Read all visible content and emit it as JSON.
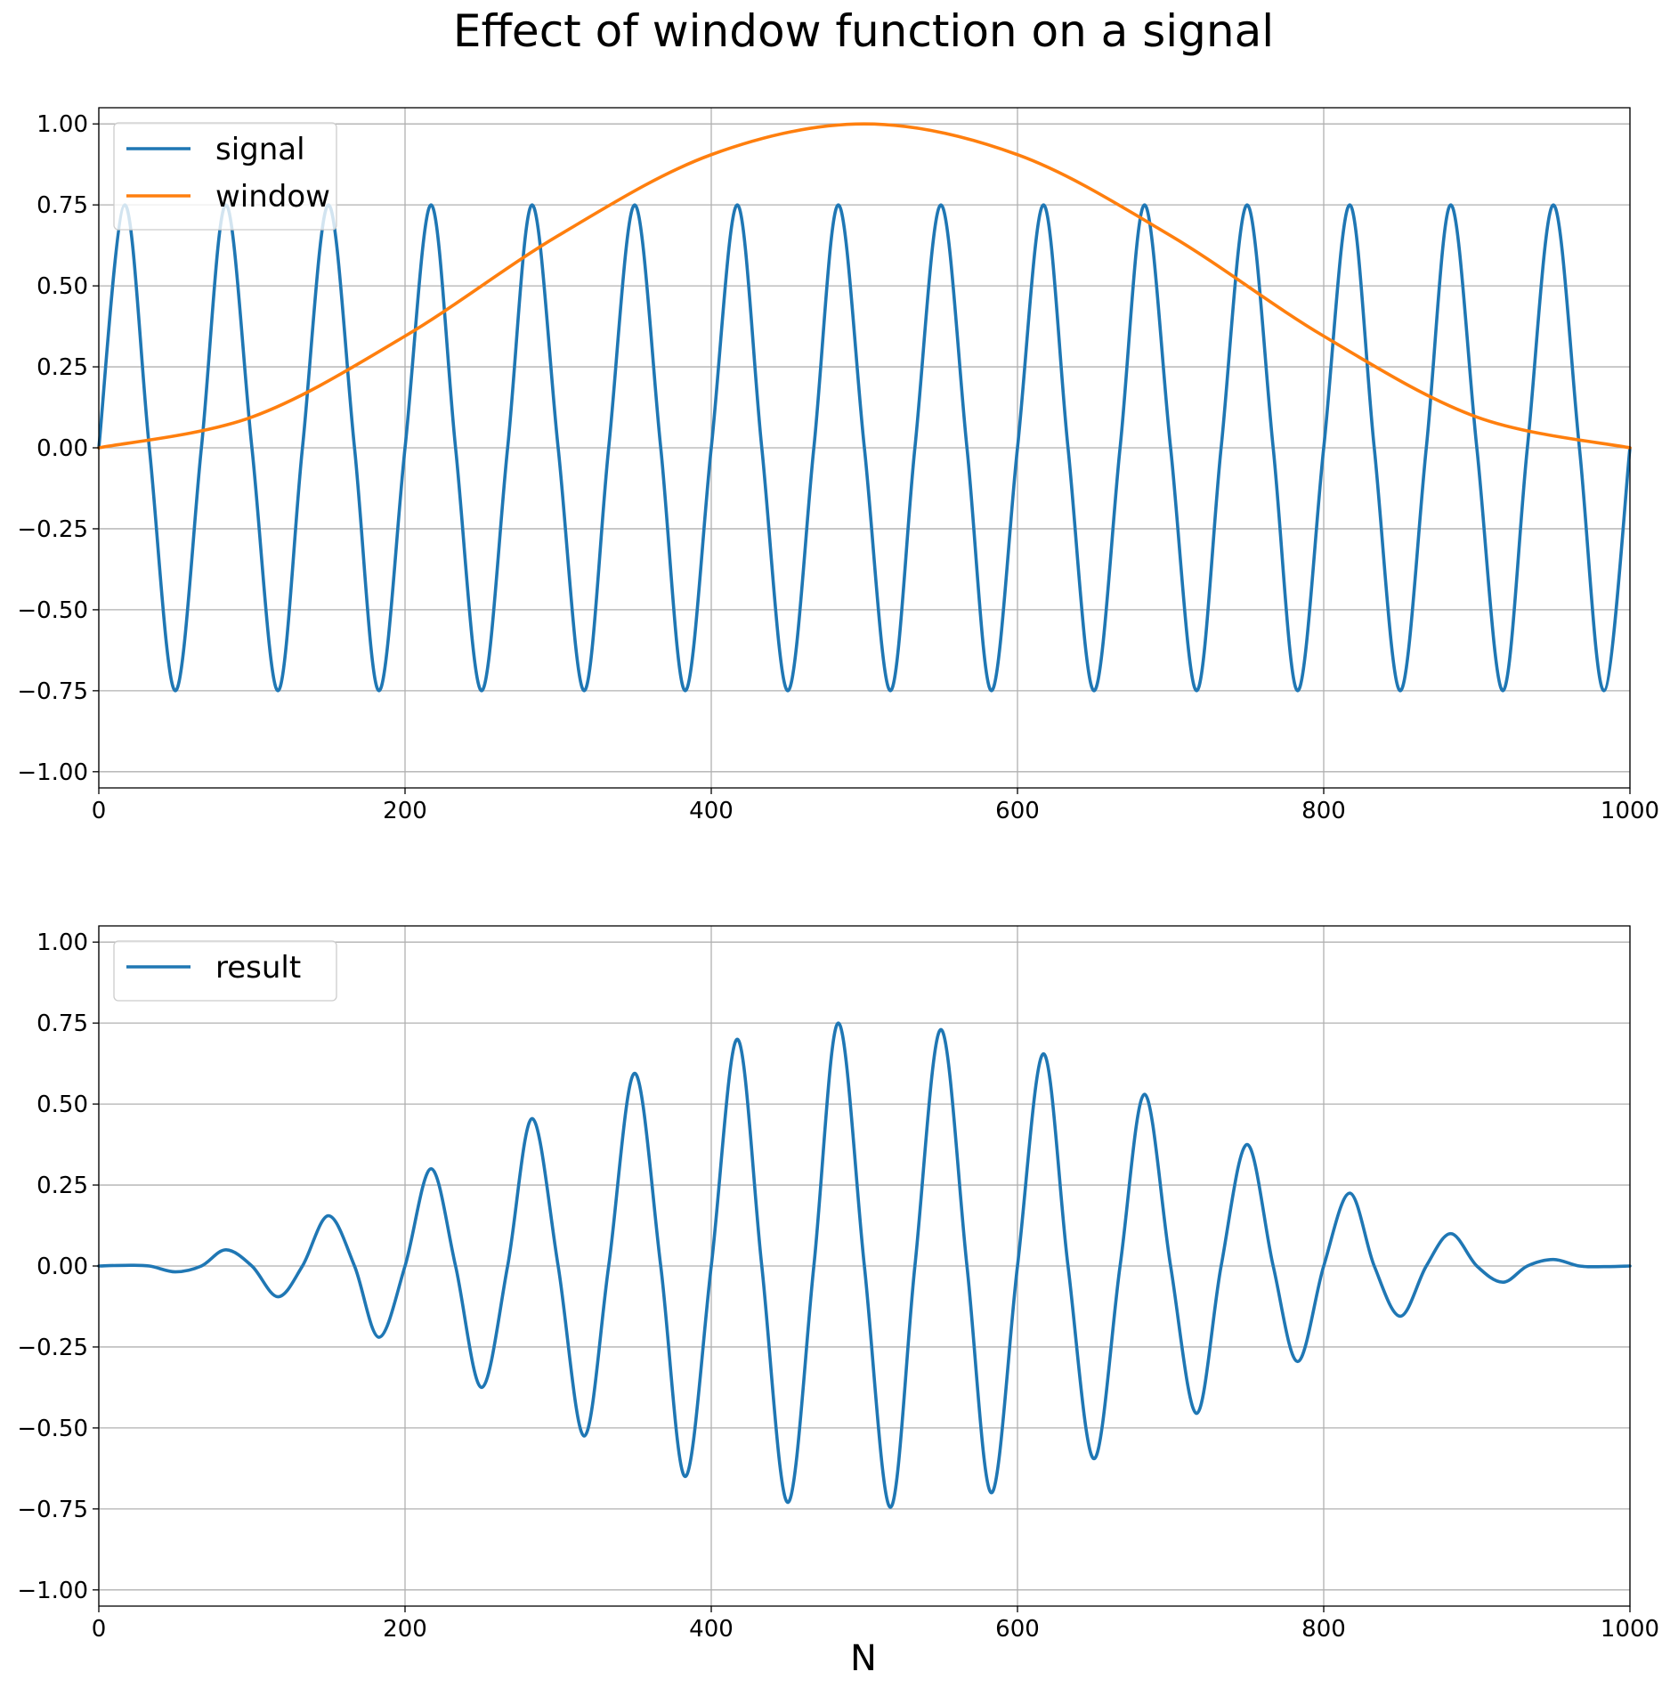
{
  "chart_data": [
    {
      "type": "line",
      "title": "Effect of window function on a signal",
      "xlabel": "",
      "ylabel": "",
      "xlim": [
        0,
        1000
      ],
      "ylim": [
        -1.05,
        1.05
      ],
      "grid": true,
      "legend_position": "upper-left",
      "x_ticks": [
        0,
        200,
        400,
        600,
        800,
        1000
      ],
      "x_tick_labels": [
        "0",
        "200",
        "400",
        "600",
        "800",
        "1000"
      ],
      "y_ticks": [
        1.0,
        0.75,
        0.5,
        0.25,
        0.0,
        -0.25,
        -0.5,
        -0.75,
        -1.0
      ],
      "y_tick_labels": [
        "1.00",
        "0.75",
        "0.50",
        "0.25",
        "0.00",
        "−0.25",
        "−0.50",
        "−0.75",
        "−1.00"
      ],
      "series": [
        {
          "name": "signal",
          "color": "#1f77b4",
          "description": "0.75*sin(2*pi*15*n/1000)",
          "x": [
            0,
            17,
            33,
            50,
            67,
            83,
            100,
            117,
            133,
            150,
            167,
            183,
            200,
            217,
            233,
            250,
            267,
            283,
            300,
            317,
            333,
            350,
            367,
            383,
            400,
            417,
            433,
            450,
            467,
            483,
            500,
            517,
            533,
            550,
            567,
            583,
            600,
            617,
            633,
            650,
            667,
            683,
            700,
            717,
            733,
            750,
            767,
            783,
            800,
            817,
            833,
            850,
            867,
            883,
            900,
            917,
            933,
            950,
            967,
            983,
            1000
          ],
          "values": [
            0.0,
            0.75,
            0.0,
            -0.75,
            0.0,
            0.75,
            0.0,
            -0.75,
            0.0,
            0.75,
            0.0,
            -0.75,
            0.0,
            0.75,
            0.0,
            -0.75,
            0.0,
            0.75,
            0.0,
            -0.75,
            0.0,
            0.75,
            0.0,
            -0.75,
            0.0,
            0.75,
            0.0,
            -0.75,
            0.0,
            0.75,
            0.0,
            -0.75,
            0.0,
            0.75,
            0.0,
            -0.75,
            0.0,
            0.75,
            0.0,
            -0.75,
            0.0,
            0.75,
            0.0,
            -0.75,
            0.0,
            0.75,
            0.0,
            -0.75,
            0.0,
            0.75,
            0.0,
            -0.75,
            0.0,
            0.75,
            0.0,
            -0.75,
            0.0,
            0.75,
            0.0,
            -0.75,
            0.0
          ]
        },
        {
          "name": "window",
          "color": "#ff7f0e",
          "description": "Hann window 0.5*(1-cos(2*pi*n/1000))",
          "x": [
            0,
            100,
            200,
            300,
            400,
            500,
            600,
            700,
            800,
            900,
            1000
          ],
          "values": [
            0.0,
            0.095,
            0.345,
            0.655,
            0.905,
            1.0,
            0.905,
            0.655,
            0.345,
            0.095,
            0.0
          ]
        }
      ]
    },
    {
      "type": "line",
      "title": "",
      "xlabel": "N",
      "ylabel": "",
      "xlim": [
        0,
        1000
      ],
      "ylim": [
        -1.05,
        1.05
      ],
      "grid": true,
      "legend_position": "upper-left",
      "x_ticks": [
        0,
        200,
        400,
        600,
        800,
        1000
      ],
      "x_tick_labels": [
        "0",
        "200",
        "400",
        "600",
        "800",
        "1000"
      ],
      "y_ticks": [
        1.0,
        0.75,
        0.5,
        0.25,
        0.0,
        -0.25,
        -0.5,
        -0.75,
        -1.0
      ],
      "y_tick_labels": [
        "1.00",
        "0.75",
        "0.50",
        "0.25",
        "0.00",
        "−0.25",
        "−0.50",
        "−0.75",
        "−1.00"
      ],
      "series": [
        {
          "name": "result",
          "color": "#1f77b4",
          "description": "signal * window",
          "x": [
            0,
            17,
            33,
            50,
            67,
            83,
            100,
            117,
            133,
            150,
            167,
            183,
            200,
            217,
            233,
            250,
            267,
            283,
            300,
            317,
            333,
            350,
            367,
            383,
            400,
            417,
            433,
            450,
            467,
            483,
            500,
            517,
            533,
            550,
            567,
            583,
            600,
            617,
            633,
            650,
            667,
            683,
            700,
            717,
            733,
            750,
            767,
            783,
            800,
            817,
            833,
            850,
            867,
            883,
            900,
            917,
            933,
            950,
            967,
            983,
            1000
          ],
          "values": [
            0.0,
            0.002,
            0.0,
            -0.018,
            0.0,
            0.05,
            0.0,
            -0.095,
            0.0,
            0.155,
            0.0,
            -0.22,
            0.0,
            0.3,
            0.0,
            -0.375,
            0.0,
            0.455,
            0.0,
            -0.525,
            0.0,
            0.595,
            0.0,
            -0.65,
            0.0,
            0.7,
            0.0,
            -0.73,
            0.0,
            0.75,
            0.0,
            -0.745,
            0.0,
            0.73,
            0.0,
            -0.7,
            0.0,
            0.655,
            0.0,
            -0.595,
            0.0,
            0.53,
            0.0,
            -0.455,
            0.0,
            0.375,
            0.0,
            -0.295,
            0.0,
            0.225,
            0.0,
            -0.155,
            0.0,
            0.1,
            0.0,
            -0.05,
            0.0,
            0.02,
            0.0,
            -0.002,
            0.0
          ]
        }
      ]
    }
  ]
}
